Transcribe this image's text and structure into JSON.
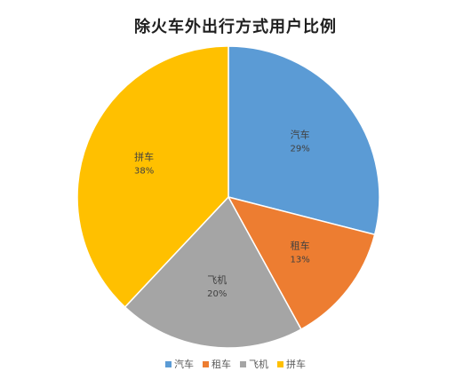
{
  "chart_data": {
    "type": "pie",
    "title": "除火车外出行方式用户比例",
    "categories": [
      "汽车",
      "租车",
      "飞机",
      "拼车"
    ],
    "values": [
      29,
      13,
      20,
      38
    ],
    "unit": "%",
    "colors": [
      "#5B9BD5",
      "#ED7D31",
      "#A5A5A5",
      "#FFC000"
    ],
    "legend_position": "bottom"
  }
}
